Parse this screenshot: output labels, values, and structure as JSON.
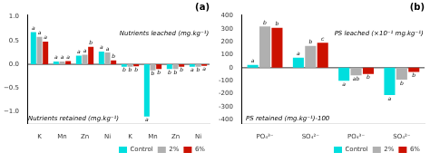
{
  "chart_data": [
    {
      "type": "bar",
      "title": "(a)",
      "categories": [
        "K",
        "Mn",
        "Zn",
        "Ni",
        "K",
        "Mn",
        "Zn",
        "Ni"
      ],
      "series": [
        {
          "name": "Control",
          "color": "#00dede",
          "values": [
            0.68,
            0.06,
            0.18,
            0.27,
            -0.05,
            -1.1,
            -0.1,
            -0.05
          ],
          "annotations": [
            "a",
            "a",
            "a",
            "a",
            "b",
            "a",
            "b",
            "a"
          ]
        },
        {
          "name": "2%",
          "color": "#b0b0b0",
          "values": [
            0.58,
            0.06,
            0.2,
            0.25,
            -0.05,
            -0.13,
            -0.1,
            -0.05
          ],
          "annotations": [
            "a",
            "a",
            "a",
            "a",
            "b",
            "b",
            "b",
            "b"
          ]
        },
        {
          "name": "6%",
          "color": "#cc1100",
          "values": [
            0.48,
            0.07,
            0.37,
            0.08,
            -0.04,
            -0.1,
            -0.05,
            -0.03
          ],
          "annotations": [
            "a",
            "a",
            "b",
            "b",
            "b",
            "b",
            "b",
            "a"
          ]
        }
      ],
      "annotations": [
        "Nutrients retained (mg.kg⁻¹)",
        "Nutrients leached (mg.kg⁻¹)"
      ],
      "ylim": [
        -1.25,
        1.05
      ],
      "yticks": [
        {
          "value": -1.0,
          "label": "−1.0"
        },
        {
          "value": -0.5,
          "label": "−0.5"
        },
        {
          "value": 0,
          "label": "0.0"
        },
        0.5,
        {
          "value": 1.0,
          "label": "1.0"
        }
      ],
      "grid": false,
      "legend": "lower right"
    },
    {
      "type": "bar",
      "title": "(b)",
      "categories": [
        "PO₄³⁻",
        "SO₄²⁻",
        "PO₄³⁻",
        "SO₄²⁻"
      ],
      "series": [
        {
          "name": "Control",
          "color": "#00dede",
          "values": [
            22,
            78,
            -100,
            -210
          ],
          "annotations": [
            "a",
            "a",
            "a",
            "a"
          ]
        },
        {
          "name": "2%",
          "color": "#b0b0b0",
          "values": [
            318,
            168,
            -58,
            -92
          ],
          "annotations": [
            "b",
            "b",
            "ab",
            "b"
          ]
        },
        {
          "name": "6%",
          "color": "#cc1100",
          "values": [
            308,
            193,
            -48,
            -32
          ],
          "annotations": [
            "b",
            "c",
            "b",
            "b"
          ]
        }
      ],
      "annotations": [
        "PS retained (mg.kg⁻¹)-100",
        "PS leached (×10⁻¹ mg.kg⁻¹)"
      ],
      "ylim": [
        -430,
        410
      ],
      "yticks": [
        -400,
        -300,
        -200,
        -100,
        0,
        100,
        200,
        300,
        400
      ],
      "grid": false,
      "legend": "lower right"
    }
  ]
}
